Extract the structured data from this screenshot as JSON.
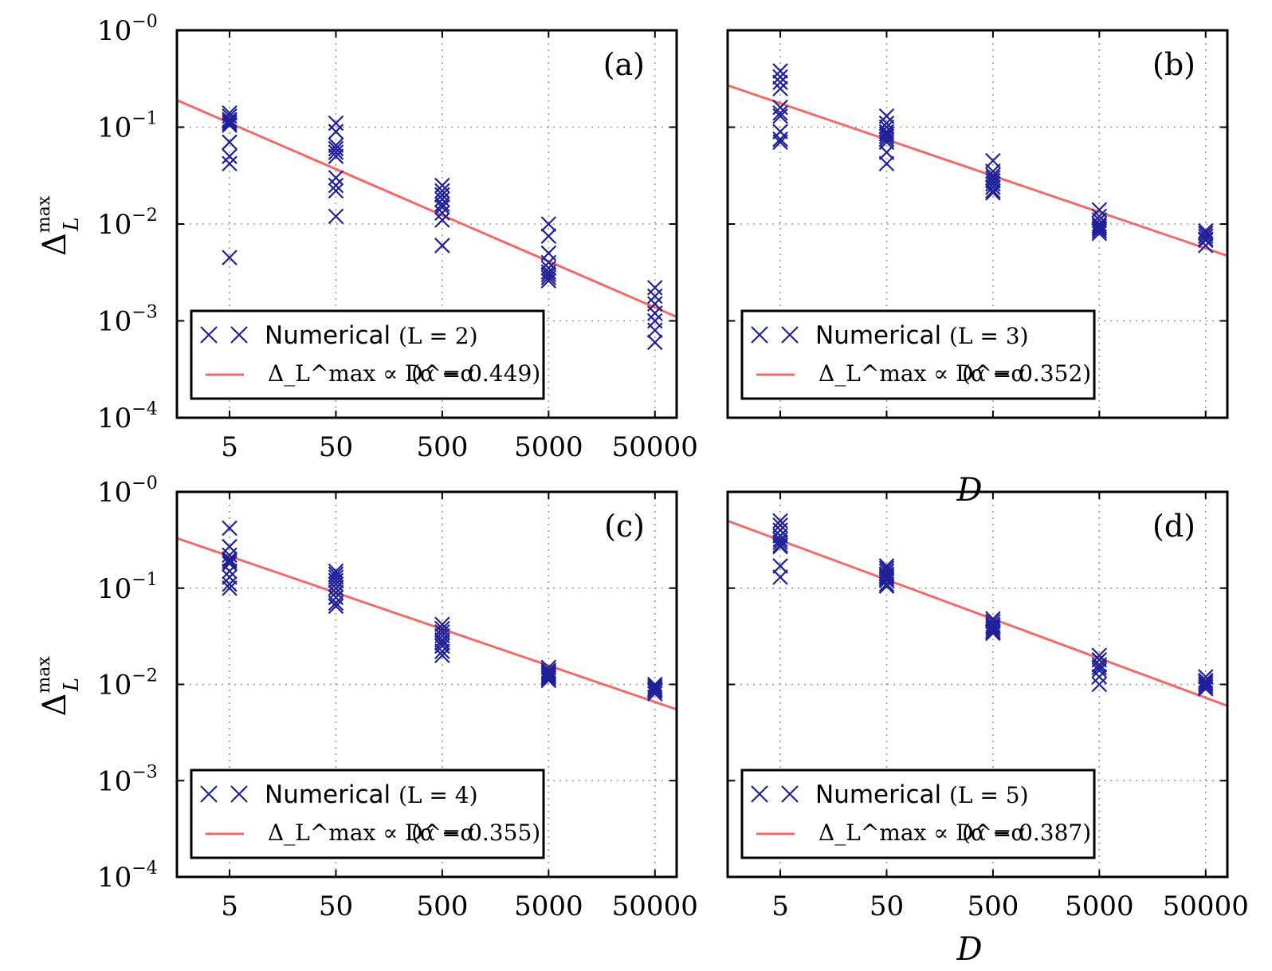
{
  "chart_data": [
    {
      "type": "scatter",
      "panel_label": "(a)",
      "xlabel": "",
      "ylabel": "Δ_L^max",
      "xscale": "log",
      "yscale": "log",
      "xlim": [
        1.6,
        80000
      ],
      "ylim": [
        0.0001,
        1.0
      ],
      "x_ticks": [
        "5",
        "50",
        "500",
        "5000",
        "50000"
      ],
      "y_ticks": [
        {
          "base": "10",
          "exp": "−0"
        },
        {
          "base": "10",
          "exp": "−1"
        },
        {
          "base": "10",
          "exp": "−2"
        },
        {
          "base": "10",
          "exp": "−3"
        },
        {
          "base": "10",
          "exp": "−4"
        }
      ],
      "grid": true,
      "legend_position": "lower-left",
      "legend": {
        "numerical_label": "Numerical",
        "numerical_param": "(L = 2)",
        "fit_label": "Δ_L^max ∝ D^−α",
        "fit_param": "(α = 0.449)"
      },
      "series": [
        {
          "kind": "markers",
          "points": [
            [
              5,
              0.14
            ],
            [
              5,
              0.13
            ],
            [
              5,
              0.12
            ],
            [
              5,
              0.115
            ],
            [
              5,
              0.11
            ],
            [
              5,
              0.105
            ],
            [
              5,
              0.07
            ],
            [
              5,
              0.05
            ],
            [
              5,
              0.042
            ],
            [
              5,
              0.0045
            ],
            [
              50,
              0.11
            ],
            [
              50,
              0.09
            ],
            [
              50,
              0.065
            ],
            [
              50,
              0.06
            ],
            [
              50,
              0.055
            ],
            [
              50,
              0.05
            ],
            [
              50,
              0.03
            ],
            [
              50,
              0.025
            ],
            [
              50,
              0.022
            ],
            [
              50,
              0.012
            ],
            [
              500,
              0.025
            ],
            [
              500,
              0.022
            ],
            [
              500,
              0.02
            ],
            [
              500,
              0.018
            ],
            [
              500,
              0.016
            ],
            [
              500,
              0.015
            ],
            [
              500,
              0.013
            ],
            [
              500,
              0.011
            ],
            [
              500,
              0.006
            ],
            [
              5000,
              0.01
            ],
            [
              5000,
              0.0075
            ],
            [
              5000,
              0.005
            ],
            [
              5000,
              0.004
            ],
            [
              5000,
              0.0035
            ],
            [
              5000,
              0.0032
            ],
            [
              5000,
              0.003
            ],
            [
              5000,
              0.0028
            ],
            [
              5000,
              0.0026
            ],
            [
              50000,
              0.0022
            ],
            [
              50000,
              0.0018
            ],
            [
              50000,
              0.0015
            ],
            [
              50000,
              0.0012
            ],
            [
              50000,
              0.001
            ],
            [
              50000,
              0.0008
            ],
            [
              50000,
              0.0006
            ]
          ]
        },
        {
          "kind": "fit",
          "x": [
            1.6,
            80000
          ],
          "y": [
            0.19,
            0.0011
          ]
        }
      ]
    },
    {
      "type": "scatter",
      "panel_label": "(b)",
      "xlabel": "D",
      "ylabel": "",
      "xscale": "log",
      "yscale": "log",
      "xlim": [
        1.6,
        80000
      ],
      "ylim": [
        0.0001,
        1.0
      ],
      "x_ticks": [],
      "y_ticks": [],
      "grid": true,
      "legend_position": "lower-left",
      "legend": {
        "numerical_label": "Numerical",
        "numerical_param": "(L = 3)",
        "fit_label": "Δ_L^max ∝ D^−α",
        "fit_param": "(α = 0.352)"
      },
      "series": [
        {
          "kind": "markers",
          "points": [
            [
              5,
              0.38
            ],
            [
              5,
              0.33
            ],
            [
              5,
              0.29
            ],
            [
              5,
              0.25
            ],
            [
              5,
              0.16
            ],
            [
              5,
              0.14
            ],
            [
              5,
              0.13
            ],
            [
              5,
              0.09
            ],
            [
              5,
              0.075
            ],
            [
              5,
              0.07
            ],
            [
              50,
              0.13
            ],
            [
              50,
              0.11
            ],
            [
              50,
              0.1
            ],
            [
              50,
              0.09
            ],
            [
              50,
              0.085
            ],
            [
              50,
              0.08
            ],
            [
              50,
              0.075
            ],
            [
              50,
              0.07
            ],
            [
              50,
              0.055
            ],
            [
              50,
              0.042
            ],
            [
              500,
              0.045
            ],
            [
              500,
              0.035
            ],
            [
              500,
              0.032
            ],
            [
              500,
              0.03
            ],
            [
              500,
              0.028
            ],
            [
              500,
              0.026
            ],
            [
              500,
              0.024
            ],
            [
              500,
              0.022
            ],
            [
              500,
              0.021
            ],
            [
              5000,
              0.014
            ],
            [
              5000,
              0.012
            ],
            [
              5000,
              0.011
            ],
            [
              5000,
              0.01
            ],
            [
              5000,
              0.0095
            ],
            [
              5000,
              0.009
            ],
            [
              5000,
              0.0085
            ],
            [
              5000,
              0.008
            ],
            [
              50000,
              0.0085
            ],
            [
              50000,
              0.008
            ],
            [
              50000,
              0.0075
            ],
            [
              50000,
              0.007
            ],
            [
              50000,
              0.0068
            ],
            [
              50000,
              0.006
            ]
          ]
        },
        {
          "kind": "fit",
          "x": [
            1.6,
            80000
          ],
          "y": [
            0.27,
            0.0047
          ]
        }
      ]
    },
    {
      "type": "scatter",
      "panel_label": "(c)",
      "xlabel": "",
      "ylabel": "Δ_L^max",
      "xscale": "log",
      "yscale": "log",
      "xlim": [
        1.6,
        80000
      ],
      "ylim": [
        0.0001,
        1.0
      ],
      "x_ticks": [
        "5",
        "50",
        "500",
        "5000",
        "50000"
      ],
      "y_ticks": [
        {
          "base": "10",
          "exp": "−0"
        },
        {
          "base": "10",
          "exp": "−1"
        },
        {
          "base": "10",
          "exp": "−2"
        },
        {
          "base": "10",
          "exp": "−3"
        },
        {
          "base": "10",
          "exp": "−4"
        }
      ],
      "grid": true,
      "legend_position": "lower-left",
      "legend": {
        "numerical_label": "Numerical",
        "numerical_param": "(L = 4)",
        "fit_label": "Δ_L^max ∝ D^−α",
        "fit_param": "(α = 0.355)"
      },
      "series": [
        {
          "kind": "markers",
          "points": [
            [
              5,
              0.42
            ],
            [
              5,
              0.27
            ],
            [
              5,
              0.22
            ],
            [
              5,
              0.2
            ],
            [
              5,
              0.19
            ],
            [
              5,
              0.18
            ],
            [
              5,
              0.15
            ],
            [
              5,
              0.13
            ],
            [
              5,
              0.11
            ],
            [
              5,
              0.1
            ],
            [
              50,
              0.15
            ],
            [
              50,
              0.14
            ],
            [
              50,
              0.13
            ],
            [
              50,
              0.12
            ],
            [
              50,
              0.11
            ],
            [
              50,
              0.1
            ],
            [
              50,
              0.09
            ],
            [
              50,
              0.08
            ],
            [
              50,
              0.07
            ],
            [
              50,
              0.065
            ],
            [
              500,
              0.042
            ],
            [
              500,
              0.038
            ],
            [
              500,
              0.035
            ],
            [
              500,
              0.032
            ],
            [
              500,
              0.029
            ],
            [
              500,
              0.027
            ],
            [
              500,
              0.025
            ],
            [
              500,
              0.022
            ],
            [
              500,
              0.02
            ],
            [
              5000,
              0.015
            ],
            [
              5000,
              0.014
            ],
            [
              5000,
              0.0135
            ],
            [
              5000,
              0.013
            ],
            [
              5000,
              0.0125
            ],
            [
              5000,
              0.012
            ],
            [
              5000,
              0.0115
            ],
            [
              5000,
              0.011
            ],
            [
              50000,
              0.01
            ],
            [
              50000,
              0.0095
            ],
            [
              50000,
              0.009
            ],
            [
              50000,
              0.0088
            ],
            [
              50000,
              0.0085
            ],
            [
              50000,
              0.008
            ]
          ]
        },
        {
          "kind": "fit",
          "x": [
            1.6,
            80000
          ],
          "y": [
            0.33,
            0.0055
          ]
        }
      ]
    },
    {
      "type": "scatter",
      "panel_label": "(d)",
      "xlabel": "D",
      "ylabel": "",
      "xscale": "log",
      "yscale": "log",
      "xlim": [
        1.6,
        80000
      ],
      "ylim": [
        0.0001,
        1.0
      ],
      "x_ticks": [
        "5",
        "50",
        "500",
        "5000",
        "50000"
      ],
      "y_ticks": [],
      "grid": true,
      "legend_position": "lower-left",
      "legend": {
        "numerical_label": "Numerical",
        "numerical_param": "(L = 5)",
        "fit_label": "Δ_L^max ∝ D^−α",
        "fit_param": "(α = 0.387)"
      },
      "series": [
        {
          "kind": "markers",
          "points": [
            [
              5,
              0.5
            ],
            [
              5,
              0.45
            ],
            [
              5,
              0.4
            ],
            [
              5,
              0.35
            ],
            [
              5,
              0.32
            ],
            [
              5,
              0.3
            ],
            [
              5,
              0.28
            ],
            [
              5,
              0.27
            ],
            [
              5,
              0.17
            ],
            [
              5,
              0.13
            ],
            [
              50,
              0.17
            ],
            [
              50,
              0.16
            ],
            [
              50,
              0.15
            ],
            [
              50,
              0.14
            ],
            [
              50,
              0.135
            ],
            [
              50,
              0.13
            ],
            [
              50,
              0.125
            ],
            [
              50,
              0.12
            ],
            [
              50,
              0.11
            ],
            [
              50,
              0.105
            ],
            [
              500,
              0.048
            ],
            [
              500,
              0.045
            ],
            [
              500,
              0.042
            ],
            [
              500,
              0.04
            ],
            [
              500,
              0.038
            ],
            [
              500,
              0.036
            ],
            [
              500,
              0.035
            ],
            [
              500,
              0.034
            ],
            [
              5000,
              0.02
            ],
            [
              5000,
              0.018
            ],
            [
              5000,
              0.016
            ],
            [
              5000,
              0.015
            ],
            [
              5000,
              0.014
            ],
            [
              5000,
              0.012
            ],
            [
              5000,
              0.01
            ],
            [
              50000,
              0.012
            ],
            [
              50000,
              0.011
            ],
            [
              50000,
              0.0105
            ],
            [
              50000,
              0.01
            ],
            [
              50000,
              0.0095
            ],
            [
              50000,
              0.009
            ]
          ]
        },
        {
          "kind": "fit",
          "x": [
            1.6,
            80000
          ],
          "y": [
            0.5,
            0.006
          ]
        }
      ]
    }
  ]
}
